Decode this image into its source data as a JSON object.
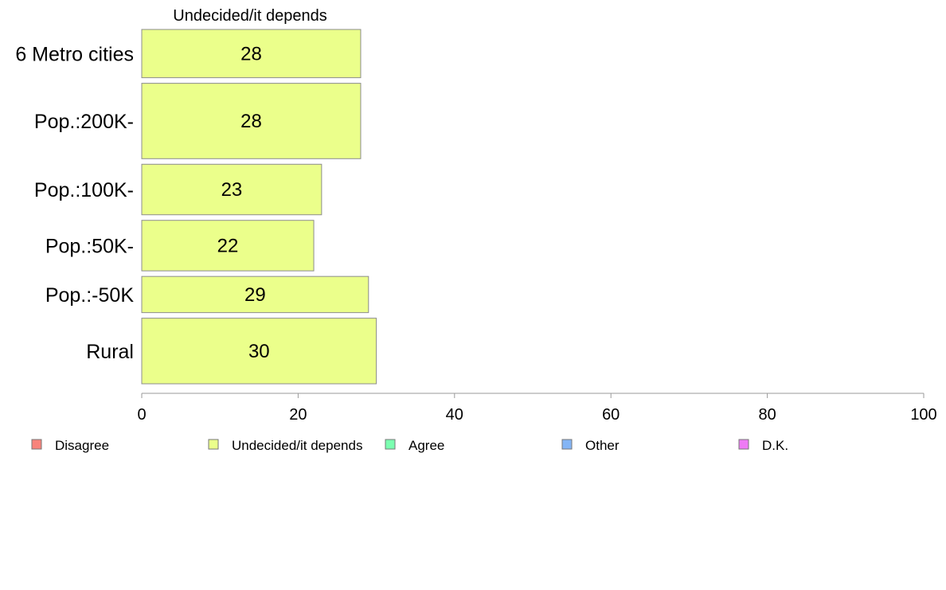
{
  "chart_data": {
    "type": "bar",
    "orientation": "horizontal",
    "panel_title": "Undecided/it depends",
    "categories": [
      "6 Metro cities",
      "Pop.:200K-",
      "Pop.:100K-",
      "Pop.:50K-",
      "Pop.:-50K",
      "Rural"
    ],
    "series": [
      {
        "name": "Undecided/it depends",
        "values": [
          28,
          28,
          23,
          22,
          29,
          30
        ],
        "labels": [
          "28",
          "28",
          "23",
          "22",
          "29",
          "30"
        ],
        "color": "#EBFF8B"
      }
    ],
    "category_weights": [
      0.64,
      1.0,
      0.67,
      0.67,
      0.48,
      0.87
    ],
    "xlim": [
      0,
      100
    ],
    "xticks": [
      0,
      20,
      40,
      60,
      80,
      100
    ],
    "xtick_labels": [
      "0",
      "20",
      "40",
      "60",
      "80",
      "100"
    ],
    "grid": false,
    "legend_position": "bottom",
    "legend": [
      {
        "label": "Disagree",
        "color": "#F8837B"
      },
      {
        "label": "Undecided/it depends",
        "color": "#EBFF8B"
      },
      {
        "label": "Agree",
        "color": "#7BFFB0"
      },
      {
        "label": "Other",
        "color": "#84B5F5"
      },
      {
        "label": "D.K.",
        "color": "#EE7BF5"
      }
    ]
  }
}
